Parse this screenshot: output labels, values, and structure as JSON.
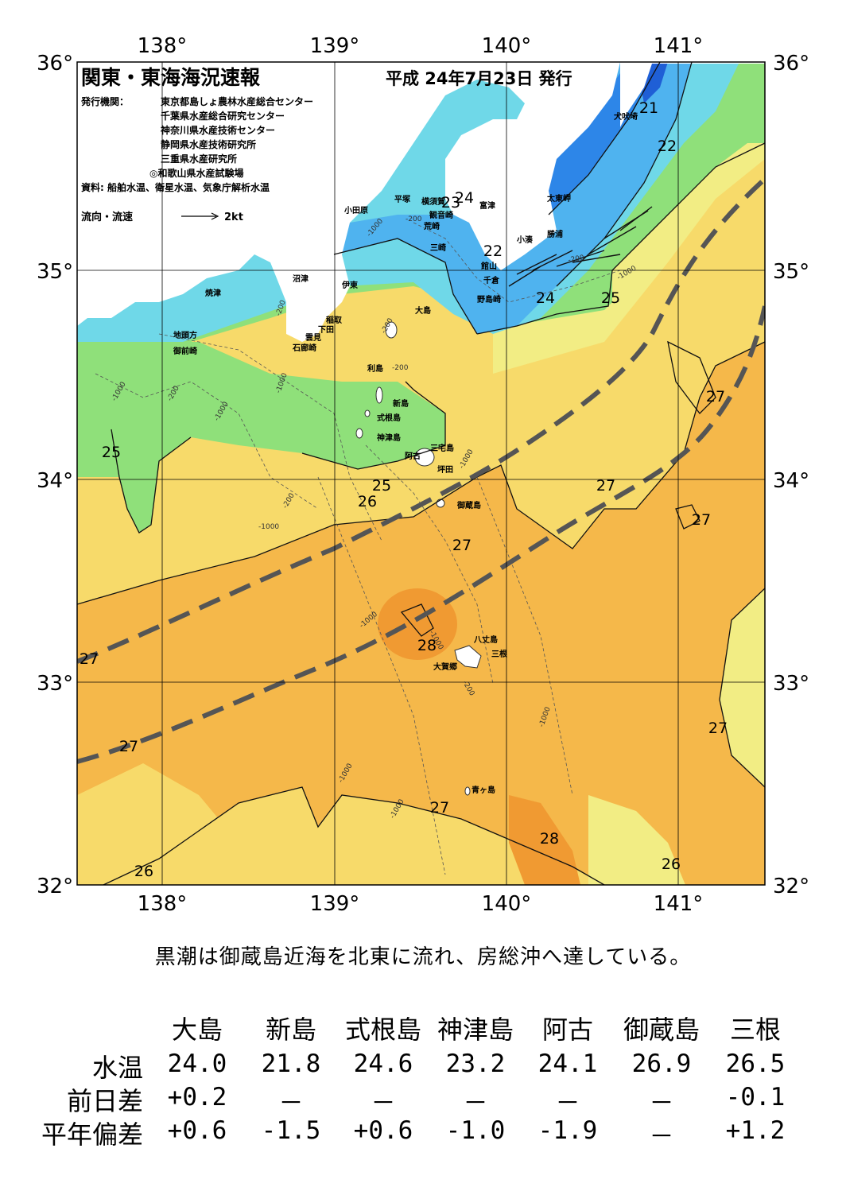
{
  "map": {
    "title": "関東・東海海況速報",
    "issue_date": "平成 24年7月23日 発行",
    "publishers_label": "発行機関：",
    "publishers": [
      "東京都島しょ農林水産総合センター",
      "千葉県水産総合研究センター",
      "神奈川県水産技術センター",
      "静岡県水産技術研究所",
      "三重県水産研究所",
      "◎和歌山県水産試験場"
    ],
    "sources": "資料: 船舶水温、衛星水温、気象庁解析水温",
    "current_legend": "流向・流速",
    "current_scale": "2kt",
    "lon_labels": [
      "138°",
      "139°",
      "140°",
      "141°"
    ],
    "lat_labels": [
      "36°",
      "35°",
      "34°",
      "33°",
      "32°"
    ],
    "places": [
      {
        "name": "犬吠埼"
      },
      {
        "name": "太東岬"
      },
      {
        "name": "勝浦"
      },
      {
        "name": "小湊"
      },
      {
        "name": "富津"
      },
      {
        "name": "館山"
      },
      {
        "name": "千倉"
      },
      {
        "name": "野島崎"
      },
      {
        "name": "横須賀"
      },
      {
        "name": "観音崎"
      },
      {
        "name": "平塚"
      },
      {
        "name": "荒崎"
      },
      {
        "name": "三崎"
      },
      {
        "name": "小田原"
      },
      {
        "name": "伊東"
      },
      {
        "name": "沼津"
      },
      {
        "name": "焼津"
      },
      {
        "name": "稲取"
      },
      {
        "name": "下田"
      },
      {
        "name": "雲見"
      },
      {
        "name": "石廊崎"
      },
      {
        "name": "地頭方"
      },
      {
        "name": "御前崎"
      },
      {
        "name": "大島"
      },
      {
        "name": "利島"
      },
      {
        "name": "新島"
      },
      {
        "name": "式根島"
      },
      {
        "name": "神津島"
      },
      {
        "name": "阿古"
      },
      {
        "name": "三宅島"
      },
      {
        "name": "坪田"
      },
      {
        "name": "御蔵島"
      },
      {
        "name": "八丈島"
      },
      {
        "name": "三根"
      },
      {
        "name": "大賀郷"
      },
      {
        "name": "青ヶ島"
      }
    ],
    "isotherm_labels": [
      {
        "v": "21"
      },
      {
        "v": "22"
      },
      {
        "v": "23"
      },
      {
        "v": "24"
      },
      {
        "v": "22"
      },
      {
        "v": "24"
      },
      {
        "v": "25"
      },
      {
        "v": "27"
      },
      {
        "v": "25"
      },
      {
        "v": "25"
      },
      {
        "v": "26"
      },
      {
        "v": "27"
      },
      {
        "v": "27"
      },
      {
        "v": "27"
      },
      {
        "v": "28"
      },
      {
        "v": "27"
      },
      {
        "v": "27"
      },
      {
        "v": "27"
      },
      {
        "v": "27"
      },
      {
        "v": "28"
      },
      {
        "v": "26"
      },
      {
        "v": "26"
      }
    ],
    "depth_labels": [
      "-1000",
      "-200",
      "-200",
      "-1000",
      "-200",
      "-200",
      "-1000",
      "-200",
      "-1000",
      "-1000",
      "-200",
      "-1000",
      "-1000",
      "-200",
      "-1000",
      "-1000",
      "-1000",
      "-1000",
      "-200",
      "-1000"
    ],
    "colors": {
      "t21": "#1f5fd6",
      "t22": "#2d86e8",
      "t23": "#4fb3ef",
      "t24": "#6fd8e8",
      "t25": "#8fe07a",
      "t26": "#f2ed84",
      "t26b": "#f7da6a",
      "t27": "#f5b84a",
      "t28": "#f09a32",
      "kuroshio": "#555555",
      "land": "#ffffff"
    }
  },
  "summary": "黒潮は御蔵島近海を北東に流れ、房総沖へ達している。",
  "table": {
    "stations": [
      "大島",
      "新島",
      "式根島",
      "神津島",
      "阿古",
      "御蔵島",
      "三根"
    ],
    "rows": [
      {
        "label": "水温",
        "values": [
          "24.0",
          "21.8",
          "24.6",
          "23.2",
          "24.1",
          "26.9",
          "26.5"
        ]
      },
      {
        "label": "前日差",
        "values": [
          "+0.2",
          "－",
          "－",
          "－",
          "－",
          "－",
          "-0.1"
        ]
      },
      {
        "label": "平年偏差",
        "values": [
          "+0.6",
          "-1.5",
          "+0.6",
          "-1.0",
          "-1.9",
          "－",
          "+1.2"
        ]
      }
    ]
  }
}
